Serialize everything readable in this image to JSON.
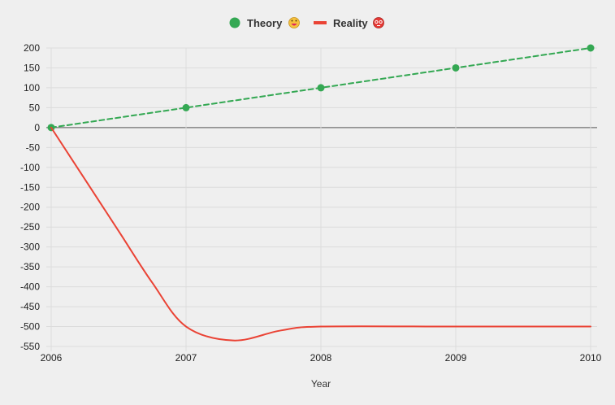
{
  "chart_data": {
    "type": "line",
    "title": "",
    "xlabel": "Year",
    "ylabel": "",
    "x": [
      2006,
      2007,
      2008,
      2009,
      2010
    ],
    "xlim": [
      2006,
      2010
    ],
    "ylim": [
      -550,
      200
    ],
    "yticks": [
      200,
      150,
      100,
      50,
      0,
      -50,
      -100,
      -150,
      -200,
      -250,
      -300,
      -350,
      -400,
      -450,
      -500,
      -550
    ],
    "xticks": [
      2006,
      2007,
      2008,
      2009,
      2010
    ],
    "grid": true,
    "legend_position": "top-center",
    "series": [
      {
        "name": "Theory",
        "emoji": "😜",
        "color": "#34a853",
        "style": "dashed",
        "markers": true,
        "points": [
          [
            2006,
            0
          ],
          [
            2007,
            50
          ],
          [
            2008,
            100
          ],
          [
            2009,
            150
          ],
          [
            2010,
            200
          ]
        ]
      },
      {
        "name": "Reality",
        "emoji": "😵",
        "color": "#ea4335",
        "style": "solid",
        "markers": false,
        "points": [
          [
            2006,
            0
          ],
          [
            2006.25,
            -130
          ],
          [
            2006.5,
            -260
          ],
          [
            2006.75,
            -390
          ],
          [
            2007,
            -500
          ],
          [
            2007.35,
            -535
          ],
          [
            2007.7,
            -510
          ],
          [
            2008,
            -500
          ],
          [
            2009,
            -500
          ],
          [
            2010,
            -500
          ]
        ]
      }
    ]
  }
}
